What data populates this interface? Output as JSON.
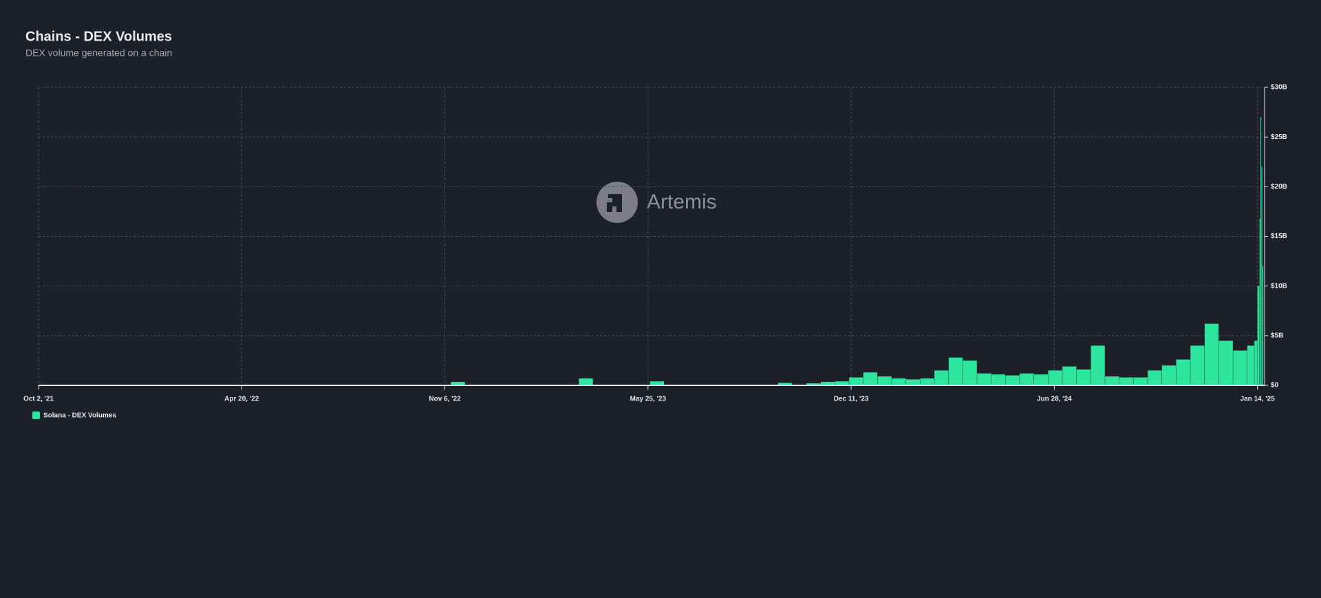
{
  "chart_data": {
    "type": "bar",
    "title": "Chains - DEX Volumes",
    "subtitle": "DEX volume generated on a chain",
    "watermark": "Artemis",
    "x": [
      "2021-10-02",
      "2021-10-16",
      "2021-10-30",
      "2021-11-13",
      "2021-11-27",
      "2021-12-11",
      "2021-12-25",
      "2022-01-08",
      "2022-01-22",
      "2022-02-05",
      "2022-02-19",
      "2022-03-05",
      "2022-03-19",
      "2022-04-02",
      "2022-04-16",
      "2022-04-30",
      "2022-05-14",
      "2022-05-28",
      "2022-06-11",
      "2022-06-25",
      "2022-07-09",
      "2022-07-23",
      "2022-08-06",
      "2022-08-20",
      "2022-09-03",
      "2022-09-17",
      "2022-10-01",
      "2022-10-15",
      "2022-10-29",
      "2022-11-12",
      "2022-11-26",
      "2022-12-10",
      "2022-12-24",
      "2023-01-07",
      "2023-01-21",
      "2023-02-04",
      "2023-02-18",
      "2023-03-04",
      "2023-03-18",
      "2023-04-01",
      "2023-04-15",
      "2023-04-29",
      "2023-05-13",
      "2023-05-27",
      "2023-06-10",
      "2023-06-24",
      "2023-07-08",
      "2023-07-22",
      "2023-08-05",
      "2023-08-19",
      "2023-09-02",
      "2023-09-16",
      "2023-09-30",
      "2023-10-14",
      "2023-10-28",
      "2023-11-11",
      "2023-11-25",
      "2023-12-09",
      "2023-12-23",
      "2024-01-06",
      "2024-01-20",
      "2024-02-03",
      "2024-02-17",
      "2024-03-02",
      "2024-03-16",
      "2024-03-30",
      "2024-04-13",
      "2024-04-27",
      "2024-05-11",
      "2024-05-25",
      "2024-06-08",
      "2024-06-22",
      "2024-07-06",
      "2024-07-20",
      "2024-08-03",
      "2024-08-17",
      "2024-08-31",
      "2024-09-14",
      "2024-09-28",
      "2024-10-12",
      "2024-10-26",
      "2024-11-09",
      "2024-11-23",
      "2024-12-07",
      "2024-12-21",
      "2025-01-04",
      "2025-01-11",
      "2025-01-14",
      "2025-01-16",
      "2025-01-17",
      "2025-01-18",
      "2025-01-19"
    ],
    "series": [
      {
        "name": "Solana - DEX Volumes",
        "color": "#2ee59d",
        "values": [
          50000000.0,
          50000000.0,
          50000000.0,
          50000000.0,
          50000000.0,
          50000000.0,
          50000000.0,
          40000000.0,
          40000000.0,
          40000000.0,
          40000000.0,
          40000000.0,
          40000000.0,
          40000000.0,
          40000000.0,
          40000000.0,
          40000000.0,
          40000000.0,
          40000000.0,
          40000000.0,
          40000000.0,
          40000000.0,
          40000000.0,
          40000000.0,
          40000000.0,
          40000000.0,
          40000000.0,
          40000000.0,
          40000000.0,
          350000000.0,
          40000000.0,
          40000000.0,
          40000000.0,
          50000000.0,
          50000000.0,
          50000000.0,
          50000000.0,
          50000000.0,
          700000000.0,
          50000000.0,
          50000000.0,
          50000000.0,
          50000000.0,
          400000000.0,
          50000000.0,
          50000000.0,
          50000000.0,
          50000000.0,
          50000000.0,
          50000000.0,
          50000000.0,
          50000000.0,
          250000000.0,
          50000000.0,
          200000000.0,
          350000000.0,
          400000000.0,
          800000000.0,
          1300000000.0,
          900000000.0,
          700000000.0,
          600000000.0,
          700000000.0,
          1500000000.0,
          2800000000.0,
          2500000000.0,
          1200000000.0,
          1100000000.0,
          1000000000.0,
          1200000000.0,
          1100000000.0,
          1500000000.0,
          1900000000.0,
          1600000000.0,
          4000000000.0,
          900000000.0,
          800000000.0,
          800000000.0,
          1500000000.0,
          2000000000.0,
          2600000000.0,
          4000000000.0,
          6200000000.0,
          4500000000.0,
          3500000000.0,
          4000000000.0,
          4500000000.0,
          10000000000.0,
          16800000000.0,
          27000000000.0,
          22000000000.0,
          12000000000.0
        ]
      }
    ],
    "xlim": [
      "2021-10-02",
      "2025-01-21"
    ],
    "xticks": [
      {
        "value": "2021-10-02",
        "label": "Oct 2, '21"
      },
      {
        "value": "2022-04-20",
        "label": "Apr 20, '22"
      },
      {
        "value": "2022-11-06",
        "label": "Nov 6, '22"
      },
      {
        "value": "2023-05-25",
        "label": "May 25, '23"
      },
      {
        "value": "2023-12-11",
        "label": "Dec 11, '23"
      },
      {
        "value": "2024-06-28",
        "label": "Jun 28, '24"
      },
      {
        "value": "2025-01-14",
        "label": "Jan 14, '25"
      }
    ],
    "ylim": [
      0,
      30000000000
    ],
    "yticks": [
      {
        "value": 0,
        "label": "$0"
      },
      {
        "value": 5000000000,
        "label": "$5B"
      },
      {
        "value": 10000000000,
        "label": "$10B"
      },
      {
        "value": 15000000000,
        "label": "$15B"
      },
      {
        "value": 20000000000,
        "label": "$20B"
      },
      {
        "value": 25000000000,
        "label": "$25B"
      },
      {
        "value": 30000000000,
        "label": "$30B"
      }
    ],
    "grid": true,
    "legend": "bottom-left"
  }
}
